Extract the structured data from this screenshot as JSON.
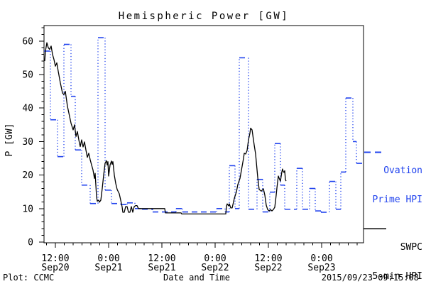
{
  "title": "Hemispheric Power [GW]",
  "timestamp": "2015/09/23 09:15:08",
  "footer": {
    "left": "Plot: CCMC",
    "center": "Date and Time",
    "right": "2015/09/23 09:15:08"
  },
  "colors": {
    "background": "#ffffff",
    "axis": "#000000",
    "ovation": "#2244ee",
    "swpc": "#000000"
  },
  "legend": {
    "ovation": {
      "line1": "Ovation",
      "line2": "Prime HPI",
      "style": "dashed"
    },
    "swpc": {
      "line1": "SWPC",
      "line2": "5-min HPI",
      "style": "solid"
    }
  },
  "axes": {
    "y": {
      "label": "P [GW]",
      "major_ticks": [
        0,
        10,
        20,
        30,
        40,
        50,
        60
      ],
      "minor_step": 2,
      "max_value": 64.6
    },
    "x": {
      "label": "Date and Time",
      "range_hours": 72,
      "first_major_hour": 2.56,
      "major_step_hours": 12,
      "minor_step_hours": 2,
      "major_labels": [
        {
          "time": "12:00",
          "date": "Sep20"
        },
        {
          "time": "0:00",
          "date": "Sep21"
        },
        {
          "time": "12:00",
          "date": "Sep21"
        },
        {
          "time": "0:00",
          "date": "Sep22"
        },
        {
          "time": "12:00",
          "date": "Sep22"
        },
        {
          "time": "0:00",
          "date": "Sep23"
        }
      ]
    }
  },
  "chart_data": {
    "type": "line",
    "title": "Hemispheric Power [GW]",
    "xlabel": "Date and Time",
    "ylabel": "P [GW]",
    "ylim": [
      0,
      64.6
    ],
    "x_unit": "hours since 2015-09-20 ~09:15 UT",
    "x_range_hours": [
      0,
      72
    ],
    "grid": false,
    "series": [
      {
        "name": "Ovation Prime HPI",
        "style": "step-dashed",
        "color": "#2244ee",
        "end_hour": 72,
        "steps": [
          [
            0,
            57
          ],
          [
            1.44,
            36.5
          ],
          [
            3.04,
            25.5
          ],
          [
            4.48,
            59
          ],
          [
            6.08,
            43.5
          ],
          [
            7.04,
            27.5
          ],
          [
            8.48,
            17
          ],
          [
            10.4,
            11.5
          ],
          [
            12.16,
            61
          ],
          [
            13.76,
            15.5
          ],
          [
            15.2,
            11.5
          ],
          [
            17.28,
            11.2
          ],
          [
            18.72,
            11.7
          ],
          [
            20.48,
            10
          ],
          [
            22.08,
            9.8
          ],
          [
            24.48,
            9
          ],
          [
            29.76,
            10
          ],
          [
            31.2,
            9
          ],
          [
            38.88,
            10
          ],
          [
            40.8,
            9
          ],
          [
            41.76,
            22.8
          ],
          [
            43.04,
            10
          ],
          [
            44,
            55
          ],
          [
            46.08,
            9.8
          ],
          [
            48,
            18.7
          ],
          [
            49.28,
            9
          ],
          [
            50.88,
            14.9
          ],
          [
            52,
            29.4
          ],
          [
            53.28,
            17
          ],
          [
            54.24,
            9.8
          ],
          [
            56.96,
            22
          ],
          [
            58.24,
            9.8
          ],
          [
            59.84,
            16
          ],
          [
            61.12,
            9.3
          ],
          [
            62.4,
            8.9
          ],
          [
            64.32,
            18.1
          ],
          [
            65.76,
            9.8
          ],
          [
            66.88,
            20.9
          ],
          [
            68,
            43
          ],
          [
            69.6,
            30
          ],
          [
            70.4,
            23.5
          ]
        ]
      },
      {
        "name": "SWPC 5-min HPI",
        "style": "solid",
        "color": "#000000",
        "points": [
          [
            0.16,
            54
          ],
          [
            0.32,
            57
          ],
          [
            0.64,
            59.5
          ],
          [
            0.96,
            58
          ],
          [
            1.28,
            57.5
          ],
          [
            1.6,
            58.5
          ],
          [
            1.92,
            56
          ],
          [
            2.24,
            54.5
          ],
          [
            2.56,
            52.5
          ],
          [
            2.88,
            53.5
          ],
          [
            3.2,
            51
          ],
          [
            3.68,
            47.5
          ],
          [
            4.16,
            44.5
          ],
          [
            4.48,
            44
          ],
          [
            4.8,
            45
          ],
          [
            5.28,
            40.5
          ],
          [
            5.76,
            37.5
          ],
          [
            6.08,
            35.5
          ],
          [
            6.56,
            33.5
          ],
          [
            6.88,
            35
          ],
          [
            7.2,
            31.5
          ],
          [
            7.52,
            33
          ],
          [
            7.84,
            30.5
          ],
          [
            8.16,
            28.5
          ],
          [
            8.48,
            30.5
          ],
          [
            8.8,
            28.4
          ],
          [
            9.12,
            29.9
          ],
          [
            9.44,
            27.5
          ],
          [
            9.76,
            25.3
          ],
          [
            10.08,
            26.5
          ],
          [
            10.4,
            24.6
          ],
          [
            10.72,
            23
          ],
          [
            11.04,
            21.5
          ],
          [
            11.36,
            19
          ],
          [
            11.52,
            20.5
          ],
          [
            11.84,
            13.5
          ],
          [
            12,
            12.2
          ],
          [
            12.32,
            12.5
          ],
          [
            12.48,
            11.9
          ],
          [
            12.8,
            12.5
          ],
          [
            13.12,
            16
          ],
          [
            13.44,
            20
          ],
          [
            13.76,
            23.5
          ],
          [
            14.08,
            24.3
          ],
          [
            14.24,
            23
          ],
          [
            14.4,
            24
          ],
          [
            14.56,
            19.7
          ],
          [
            14.88,
            23
          ],
          [
            15.2,
            24.2
          ],
          [
            15.36,
            23.2
          ],
          [
            15.52,
            24
          ],
          [
            15.84,
            20
          ],
          [
            16.16,
            17.5
          ],
          [
            16.48,
            15.7
          ],
          [
            16.96,
            14.4
          ],
          [
            17.28,
            12.5
          ],
          [
            17.6,
            10.5
          ],
          [
            17.76,
            8.9
          ],
          [
            18.08,
            8.9
          ],
          [
            18.4,
            10.6
          ],
          [
            18.72,
            10.6
          ],
          [
            19.04,
            8.9
          ],
          [
            19.36,
            8.9
          ],
          [
            19.68,
            10.6
          ],
          [
            20,
            8.9
          ],
          [
            20.32,
            10.6
          ],
          [
            20.64,
            10.9
          ],
          [
            20.96,
            10.9
          ],
          [
            21.28,
            10
          ],
          [
            22.08,
            10
          ],
          [
            27.2,
            10
          ],
          [
            27.36,
            8.7
          ],
          [
            30.88,
            8.7
          ],
          [
            31.04,
            8.4
          ],
          [
            38.88,
            8.4
          ],
          [
            40.96,
            8.4
          ],
          [
            41.12,
            10.7
          ],
          [
            41.28,
            11.4
          ],
          [
            41.6,
            10.8
          ],
          [
            41.76,
            11.4
          ],
          [
            42.08,
            10.2
          ],
          [
            42.4,
            10.2
          ],
          [
            42.88,
            13
          ],
          [
            43.36,
            15
          ],
          [
            43.68,
            17.2
          ],
          [
            44.16,
            19
          ],
          [
            44.48,
            21.4
          ],
          [
            44.96,
            25
          ],
          [
            45.12,
            26.5
          ],
          [
            45.44,
            26.3
          ],
          [
            45.76,
            27.3
          ],
          [
            46.08,
            30.5
          ],
          [
            46.4,
            32.5
          ],
          [
            46.56,
            34
          ],
          [
            46.88,
            33.5
          ],
          [
            47.04,
            32
          ],
          [
            47.36,
            29
          ],
          [
            47.68,
            26.3
          ],
          [
            48.16,
            19.3
          ],
          [
            48.48,
            15.7
          ],
          [
            48.96,
            15.2
          ],
          [
            49.44,
            15.9
          ],
          [
            49.76,
            14
          ],
          [
            50.08,
            11
          ],
          [
            50.4,
            9.7
          ],
          [
            50.72,
            9.3
          ],
          [
            51.04,
            9.7
          ],
          [
            51.36,
            9.3
          ],
          [
            51.68,
            9.7
          ],
          [
            52,
            10.4
          ],
          [
            52.32,
            14
          ],
          [
            52.48,
            16.1
          ],
          [
            52.8,
            19.7
          ],
          [
            53.12,
            18.6
          ],
          [
            53.28,
            18.2
          ],
          [
            53.6,
            21
          ],
          [
            53.76,
            21.8
          ],
          [
            53.92,
            21
          ],
          [
            54.08,
            20.8
          ],
          [
            54.24,
            21.3
          ],
          [
            54.4,
            18.6
          ],
          [
            54.56,
            18.2
          ]
        ]
      }
    ]
  }
}
